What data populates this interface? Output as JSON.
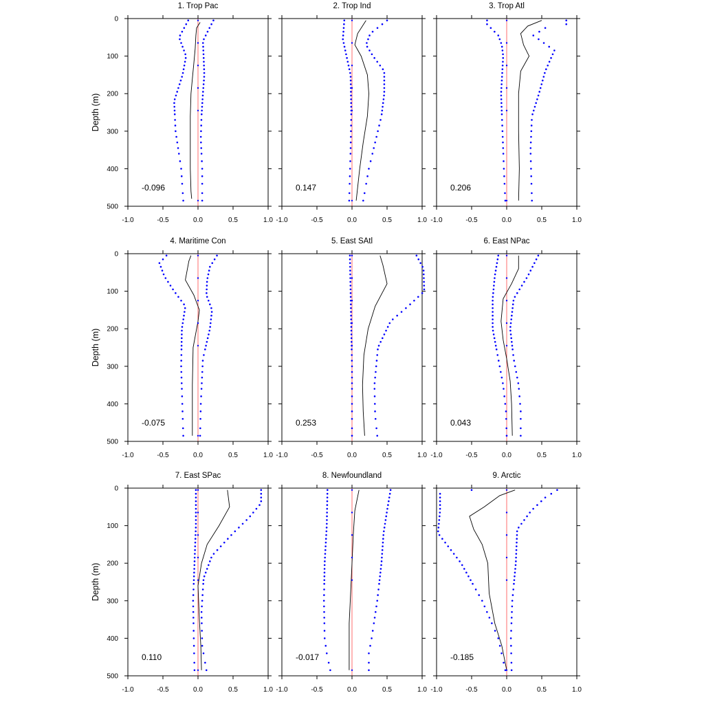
{
  "chart_data": {
    "type": "line",
    "ylabel": "Depth (m)",
    "xlim": [
      -1.0,
      1.0
    ],
    "ylim": [
      0,
      500
    ],
    "y_inverted": true,
    "x_tick_labels": [
      "-1.0",
      "-0.5",
      "0.0",
      "0.5",
      "1.0"
    ],
    "y_tick_labels": [
      "0",
      "100",
      "200",
      "300",
      "400",
      "500"
    ],
    "colors": {
      "mean": "#000000",
      "bounds": "#0000ff",
      "zero": "#ff6b6b"
    },
    "depths": [
      5,
      15,
      25,
      35,
      45,
      55,
      65,
      75,
      85,
      95,
      105,
      115,
      125,
      135,
      145,
      155,
      165,
      175,
      185,
      195,
      205,
      215,
      225,
      235,
      245,
      255,
      270,
      285,
      300,
      315,
      330,
      345,
      360,
      380,
      400,
      420,
      440,
      465,
      485
    ],
    "panels": [
      {
        "title": "1. Trop Pac",
        "stat": "-0.096",
        "mean_profile": [
          [
            10,
            0.03
          ],
          [
            25,
            -0.02
          ],
          [
            45,
            -0.03
          ],
          [
            80,
            -0.04
          ],
          [
            120,
            -0.06
          ],
          [
            160,
            -0.08
          ],
          [
            200,
            -0.1
          ],
          [
            260,
            -0.11
          ],
          [
            320,
            -0.11
          ],
          [
            400,
            -0.11
          ],
          [
            460,
            -0.1
          ],
          [
            480,
            -0.09
          ]
        ],
        "lower": [
          [
            5,
            -0.14
          ],
          [
            50,
            -0.27
          ],
          [
            100,
            -0.17
          ],
          [
            150,
            -0.22
          ],
          [
            220,
            -0.34
          ],
          [
            300,
            -0.32
          ],
          [
            400,
            -0.24
          ],
          [
            485,
            -0.21
          ]
        ],
        "upper": [
          [
            5,
            0.22
          ],
          [
            30,
            0.15
          ],
          [
            60,
            0.07
          ],
          [
            100,
            0.08
          ],
          [
            150,
            0.09
          ],
          [
            200,
            0.07
          ],
          [
            260,
            0.05
          ],
          [
            320,
            0.04
          ],
          [
            400,
            0.06
          ],
          [
            485,
            0.06
          ]
        ]
      },
      {
        "title": "2. Trop Ind",
        "stat": "0.147",
        "mean_profile": [
          [
            5,
            0.2
          ],
          [
            40,
            0.08
          ],
          [
            70,
            0.04
          ],
          [
            100,
            0.13
          ],
          [
            150,
            0.22
          ],
          [
            200,
            0.24
          ],
          [
            260,
            0.22
          ],
          [
            330,
            0.16
          ],
          [
            400,
            0.11
          ],
          [
            485,
            0.06
          ]
        ],
        "lower": [
          [
            5,
            -0.11
          ],
          [
            55,
            -0.13
          ],
          [
            90,
            -0.09
          ],
          [
            150,
            -0.02
          ],
          [
            250,
            -0.01
          ],
          [
            350,
            -0.02
          ],
          [
            485,
            -0.04
          ]
        ],
        "upper": [
          [
            5,
            0.5
          ],
          [
            40,
            0.26
          ],
          [
            70,
            0.2
          ],
          [
            100,
            0.3
          ],
          [
            140,
            0.46
          ],
          [
            200,
            0.46
          ],
          [
            260,
            0.42
          ],
          [
            330,
            0.33
          ],
          [
            400,
            0.24
          ],
          [
            485,
            0.16
          ]
        ]
      },
      {
        "title": "3. Trop Atl",
        "stat": "0.206",
        "mean_profile": [
          [
            5,
            0.5
          ],
          [
            20,
            0.3
          ],
          [
            40,
            0.2
          ],
          [
            70,
            0.24
          ],
          [
            100,
            0.32
          ],
          [
            140,
            0.2
          ],
          [
            200,
            0.17
          ],
          [
            300,
            0.17
          ],
          [
            400,
            0.18
          ],
          [
            485,
            0.17
          ]
        ],
        "lower": [
          [
            15,
            -0.28
          ],
          [
            45,
            -0.12
          ],
          [
            70,
            -0.07
          ],
          [
            100,
            -0.05
          ],
          [
            200,
            -0.08
          ],
          [
            300,
            -0.06
          ],
          [
            400,
            -0.04
          ],
          [
            485,
            -0.02
          ]
        ],
        "upper": [
          [
            15,
            0.85
          ],
          [
            25,
            0.55
          ],
          [
            45,
            0.38
          ],
          [
            85,
            0.68
          ],
          [
            140,
            0.55
          ],
          [
            200,
            0.46
          ],
          [
            260,
            0.36
          ],
          [
            350,
            0.34
          ],
          [
            420,
            0.35
          ],
          [
            485,
            0.36
          ]
        ]
      },
      {
        "title": "4. Maritime Con",
        "stat": "-0.075",
        "mean_profile": [
          [
            5,
            -0.1
          ],
          [
            20,
            -0.13
          ],
          [
            70,
            -0.18
          ],
          [
            110,
            -0.06
          ],
          [
            150,
            0.02
          ],
          [
            180,
            0.0
          ],
          [
            250,
            -0.07
          ],
          [
            350,
            -0.08
          ],
          [
            485,
            -0.08
          ]
        ],
        "lower": [
          [
            5,
            -0.45
          ],
          [
            25,
            -0.55
          ],
          [
            60,
            -0.48
          ],
          [
            100,
            -0.34
          ],
          [
            140,
            -0.18
          ],
          [
            200,
            -0.23
          ],
          [
            300,
            -0.24
          ],
          [
            485,
            -0.21
          ]
        ],
        "upper": [
          [
            5,
            0.27
          ],
          [
            35,
            0.17
          ],
          [
            70,
            0.13
          ],
          [
            110,
            0.12
          ],
          [
            150,
            0.2
          ],
          [
            200,
            0.17
          ],
          [
            280,
            0.07
          ],
          [
            400,
            0.04
          ],
          [
            485,
            0.03
          ]
        ]
      },
      {
        "title": "5. East SAtl",
        "stat": "0.253",
        "mean_profile": [
          [
            5,
            0.4
          ],
          [
            30,
            0.44
          ],
          [
            80,
            0.5
          ],
          [
            140,
            0.33
          ],
          [
            200,
            0.23
          ],
          [
            270,
            0.17
          ],
          [
            350,
            0.15
          ],
          [
            420,
            0.16
          ],
          [
            485,
            0.18
          ]
        ],
        "lower": [
          [
            5,
            -0.03
          ],
          [
            100,
            -0.02
          ],
          [
            200,
            -0.01
          ],
          [
            300,
            0.0
          ],
          [
            485,
            0.0
          ]
        ],
        "upper": [
          [
            5,
            0.92
          ],
          [
            40,
            1.02
          ],
          [
            100,
            1.03
          ],
          [
            140,
            0.8
          ],
          [
            180,
            0.55
          ],
          [
            250,
            0.37
          ],
          [
            350,
            0.32
          ],
          [
            430,
            0.33
          ],
          [
            485,
            0.36
          ]
        ]
      },
      {
        "title": "6. East NPac",
        "stat": "0.043",
        "mean_profile": [
          [
            5,
            0.17
          ],
          [
            40,
            0.17
          ],
          [
            80,
            0.07
          ],
          [
            120,
            -0.05
          ],
          [
            180,
            -0.08
          ],
          [
            230,
            -0.05
          ],
          [
            280,
            0.0
          ],
          [
            340,
            0.05
          ],
          [
            400,
            0.07
          ],
          [
            485,
            0.08
          ]
        ],
        "lower": [
          [
            5,
            -0.12
          ],
          [
            60,
            -0.17
          ],
          [
            120,
            -0.2
          ],
          [
            200,
            -0.2
          ],
          [
            280,
            -0.12
          ],
          [
            350,
            -0.05
          ],
          [
            420,
            -0.01
          ],
          [
            485,
            0.0
          ]
        ],
        "upper": [
          [
            5,
            0.45
          ],
          [
            60,
            0.3
          ],
          [
            120,
            0.1
          ],
          [
            200,
            0.05
          ],
          [
            280,
            0.1
          ],
          [
            350,
            0.17
          ],
          [
            420,
            0.2
          ],
          [
            485,
            0.2
          ]
        ]
      },
      {
        "title": "7. East SPac",
        "stat": "0.110",
        "mean_profile": [
          [
            5,
            0.42
          ],
          [
            50,
            0.45
          ],
          [
            100,
            0.3
          ],
          [
            150,
            0.13
          ],
          [
            200,
            0.05
          ],
          [
            260,
            0.0
          ],
          [
            350,
            0.02
          ],
          [
            420,
            0.04
          ],
          [
            485,
            0.05
          ]
        ],
        "lower": [
          [
            5,
            -0.03
          ],
          [
            100,
            -0.03
          ],
          [
            200,
            -0.05
          ],
          [
            300,
            -0.07
          ],
          [
            400,
            -0.06
          ],
          [
            485,
            -0.05
          ]
        ],
        "upper": [
          [
            5,
            0.9
          ],
          [
            40,
            0.9
          ],
          [
            80,
            0.72
          ],
          [
            120,
            0.5
          ],
          [
            180,
            0.2
          ],
          [
            240,
            0.08
          ],
          [
            330,
            0.05
          ],
          [
            420,
            0.06
          ],
          [
            485,
            0.12
          ]
        ]
      },
      {
        "title": "8. Newfoundland",
        "stat": "-0.017",
        "mean_profile": [
          [
            5,
            0.1
          ],
          [
            60,
            0.04
          ],
          [
            120,
            0.02
          ],
          [
            200,
            0.0
          ],
          [
            280,
            -0.02
          ],
          [
            360,
            -0.04
          ],
          [
            420,
            -0.04
          ],
          [
            485,
            -0.04
          ]
        ],
        "lower": [
          [
            5,
            -0.35
          ],
          [
            100,
            -0.36
          ],
          [
            200,
            -0.39
          ],
          [
            300,
            -0.4
          ],
          [
            400,
            -0.39
          ],
          [
            440,
            -0.36
          ],
          [
            485,
            -0.31
          ]
        ],
        "upper": [
          [
            5,
            0.55
          ],
          [
            60,
            0.5
          ],
          [
            120,
            0.45
          ],
          [
            200,
            0.42
          ],
          [
            300,
            0.36
          ],
          [
            400,
            0.28
          ],
          [
            440,
            0.24
          ],
          [
            485,
            0.24
          ]
        ]
      },
      {
        "title": "9. Arctic",
        "stat": "-0.185",
        "mean_profile": [
          [
            5,
            0.12
          ],
          [
            20,
            -0.1
          ],
          [
            50,
            -0.32
          ],
          [
            75,
            -0.53
          ],
          [
            110,
            -0.47
          ],
          [
            150,
            -0.35
          ],
          [
            200,
            -0.27
          ],
          [
            280,
            -0.25
          ],
          [
            360,
            -0.17
          ],
          [
            420,
            -0.07
          ],
          [
            485,
            0.0
          ]
        ],
        "lower": [
          [
            5,
            -0.5
          ],
          [
            12,
            -0.95
          ],
          [
            60,
            -0.95
          ],
          [
            120,
            -0.98
          ],
          [
            200,
            -0.65
          ],
          [
            300,
            -0.35
          ],
          [
            400,
            -0.12
          ],
          [
            485,
            -0.02
          ]
        ],
        "upper": [
          [
            5,
            0.72
          ],
          [
            25,
            0.55
          ],
          [
            60,
            0.35
          ],
          [
            110,
            0.15
          ],
          [
            200,
            0.13
          ],
          [
            300,
            0.08
          ],
          [
            400,
            0.06
          ],
          [
            485,
            0.07
          ]
        ]
      }
    ]
  }
}
